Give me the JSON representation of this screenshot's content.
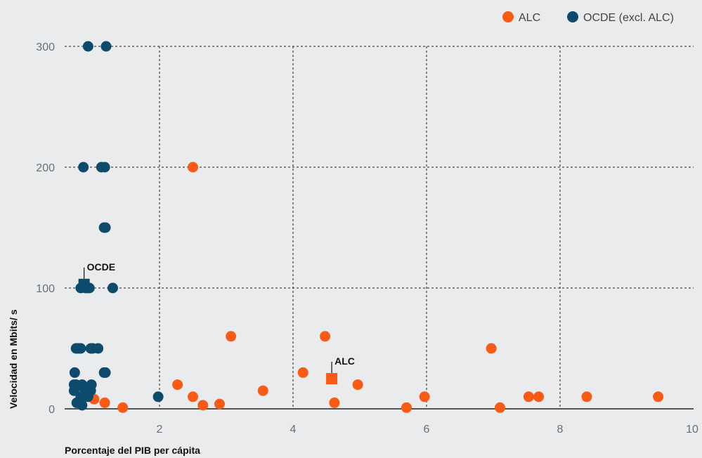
{
  "chart_data": {
    "type": "scatter",
    "xlabel": "Porcentaje del PIB per cápita",
    "ylabel": "Velocidad en Mbits/ s",
    "xlim": [
      0.7,
      10
    ],
    "ylim": [
      0,
      300
    ],
    "x_ticks": [
      2,
      4,
      6,
      8,
      10
    ],
    "y_ticks": [
      0,
      100,
      200,
      300
    ],
    "grid": true,
    "legend_position": "top-right",
    "colors": {
      "alc": "#fa5a14",
      "ocde": "#0d4a6b",
      "background": "#e9ebec"
    },
    "series": [
      {
        "name": "ALC",
        "marker": "circle",
        "points": [
          {
            "x": 1.02,
            "y": 8
          },
          {
            "x": 1.18,
            "y": 5
          },
          {
            "x": 1.45,
            "y": 1
          },
          {
            "x": 2.27,
            "y": 20
          },
          {
            "x": 2.5,
            "y": 10
          },
          {
            "x": 2.65,
            "y": 3
          },
          {
            "x": 2.9,
            "y": 4
          },
          {
            "x": 3.07,
            "y": 60
          },
          {
            "x": 3.55,
            "y": 15
          },
          {
            "x": 4.15,
            "y": 30
          },
          {
            "x": 4.48,
            "y": 60
          },
          {
            "x": 4.62,
            "y": 5
          },
          {
            "x": 4.97,
            "y": 20
          },
          {
            "x": 5.7,
            "y": 1
          },
          {
            "x": 5.97,
            "y": 10
          },
          {
            "x": 6.97,
            "y": 50
          },
          {
            "x": 7.1,
            "y": 1
          },
          {
            "x": 7.53,
            "y": 10
          },
          {
            "x": 7.68,
            "y": 10
          },
          {
            "x": 8.4,
            "y": 10
          },
          {
            "x": 9.47,
            "y": 10
          },
          {
            "x": 2.5,
            "y": 200
          }
        ]
      },
      {
        "name": "OCDE (excl. ALC)",
        "marker": "circle",
        "points": [
          {
            "x": 0.93,
            "y": 300
          },
          {
            "x": 1.2,
            "y": 300
          },
          {
            "x": 0.86,
            "y": 200
          },
          {
            "x": 1.13,
            "y": 200
          },
          {
            "x": 1.18,
            "y": 200
          },
          {
            "x": 1.17,
            "y": 150
          },
          {
            "x": 1.19,
            "y": 150
          },
          {
            "x": 0.82,
            "y": 100
          },
          {
            "x": 0.89,
            "y": 100
          },
          {
            "x": 0.92,
            "y": 100
          },
          {
            "x": 0.95,
            "y": 100
          },
          {
            "x": 1.3,
            "y": 100
          },
          {
            "x": 0.75,
            "y": 50
          },
          {
            "x": 0.77,
            "y": 50
          },
          {
            "x": 0.8,
            "y": 50
          },
          {
            "x": 0.82,
            "y": 50
          },
          {
            "x": 0.97,
            "y": 50
          },
          {
            "x": 1.0,
            "y": 50
          },
          {
            "x": 1.08,
            "y": 50
          },
          {
            "x": 1.17,
            "y": 30
          },
          {
            "x": 1.19,
            "y": 30
          },
          {
            "x": 0.73,
            "y": 30
          },
          {
            "x": 0.72,
            "y": 20
          },
          {
            "x": 0.75,
            "y": 20
          },
          {
            "x": 0.84,
            "y": 20
          },
          {
            "x": 0.98,
            "y": 20
          },
          {
            "x": 0.87,
            "y": 17
          },
          {
            "x": 0.72,
            "y": 15
          },
          {
            "x": 0.97,
            "y": 15
          },
          {
            "x": 0.82,
            "y": 10
          },
          {
            "x": 0.93,
            "y": 10
          },
          {
            "x": 0.76,
            "y": 5
          },
          {
            "x": 0.84,
            "y": 3
          },
          {
            "x": 1.98,
            "y": 10
          }
        ]
      }
    ],
    "annotations": [
      {
        "label": "OCDE",
        "x": 0.87,
        "y": 103,
        "marker": "square",
        "color": "#0d4a6b"
      },
      {
        "label": "ALC",
        "x": 4.58,
        "y": 25,
        "marker": "square",
        "color": "#fa5a14"
      }
    ]
  }
}
